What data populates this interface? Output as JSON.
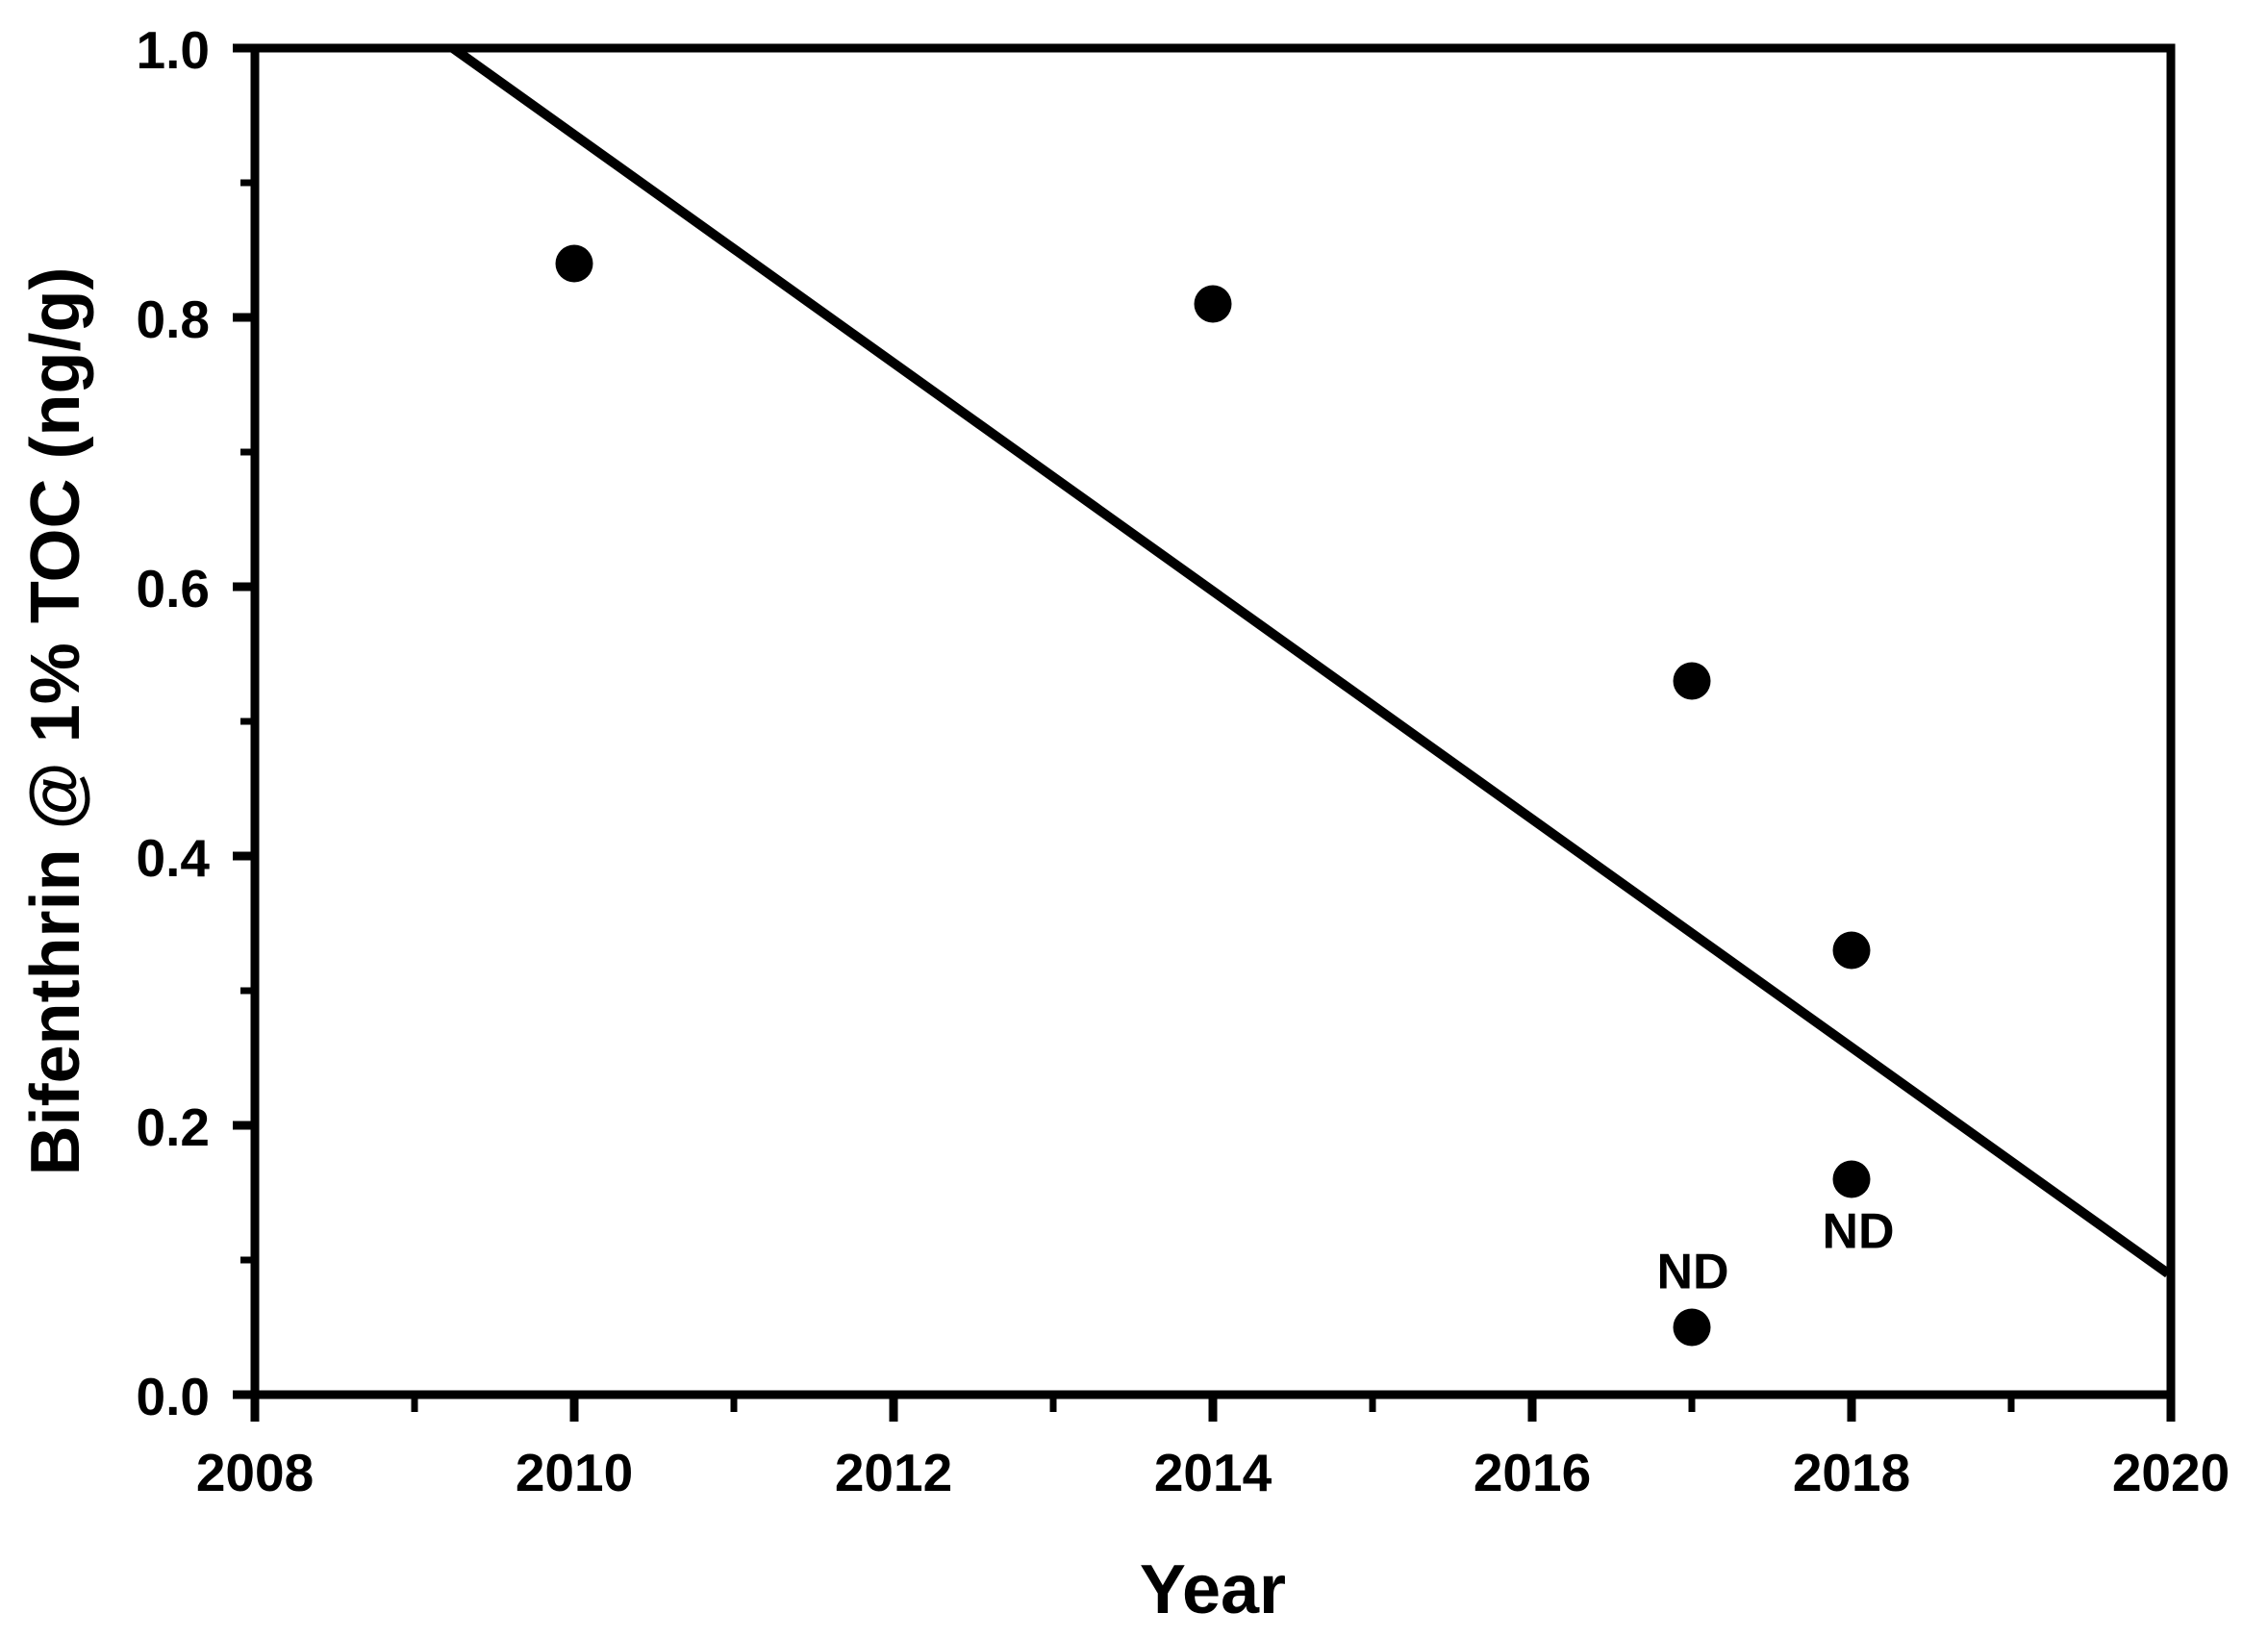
{
  "figure": {
    "background": "#ffffff",
    "ink": "#000000"
  },
  "chart_data": {
    "type": "scatter",
    "title": "",
    "xlabel": "Year",
    "ylabel": "Bifenthrin @ 1% TOC (ng/g)",
    "xlim": [
      2008,
      2020
    ],
    "ylim": [
      0.0,
      1.0
    ],
    "x_major_ticks": [
      2008,
      2010,
      2012,
      2014,
      2016,
      2018,
      2020
    ],
    "x_minor_ticks": [
      2009,
      2011,
      2013,
      2015,
      2017,
      2019
    ],
    "y_major_ticks": [
      0.0,
      0.2,
      0.4,
      0.6,
      0.8,
      1.0
    ],
    "y_minor_ticks": [
      0.1,
      0.3,
      0.5,
      0.7,
      0.9
    ],
    "grid": false,
    "legend_position": "none",
    "marker": "circle-filled",
    "marker_color": "#000000",
    "points": [
      {
        "x": 2010,
        "y": 0.84
      },
      {
        "x": 2014,
        "y": 0.81
      },
      {
        "x": 2017,
        "y": 0.53
      },
      {
        "x": 2018,
        "y": 0.33
      },
      {
        "x": 2018,
        "y": 0.16,
        "label": "ND",
        "label_position": "below"
      },
      {
        "x": 2017,
        "y": 0.05,
        "label": "ND",
        "label_position": "above"
      }
    ],
    "trend_line": {
      "x1": 2009.24,
      "y1": 1.0,
      "x2": 2020,
      "y2": 0.09
    }
  }
}
